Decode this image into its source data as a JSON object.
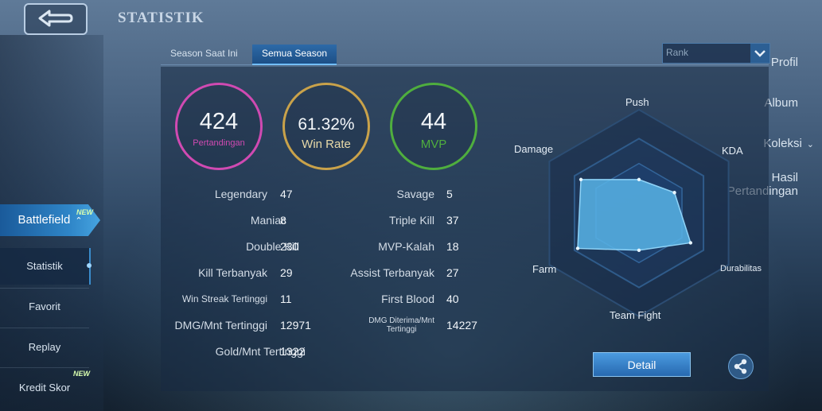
{
  "header": {
    "title": "STATISTIK",
    "back_icon": "back-arrow-icon"
  },
  "sidebar": {
    "items": [
      {
        "label": "Profil"
      },
      {
        "label": "Album"
      },
      {
        "label": "Koleksi"
      },
      {
        "label_line1": "Hasil",
        "label_line2": "Pertandingan"
      },
      {
        "label": "Battlefield",
        "badge": "NEW"
      }
    ],
    "sub_items": [
      {
        "label": "Statistik"
      },
      {
        "label": "Favorit"
      },
      {
        "label": "Replay"
      },
      {
        "label": "Kredit Skor",
        "badge": "NEW"
      }
    ]
  },
  "tabs": [
    {
      "label": "Season Saat Ini"
    },
    {
      "label": "Semua Season"
    }
  ],
  "filter": {
    "selected": "Rank"
  },
  "summary": {
    "matches": {
      "value": "424",
      "label": "Pertandingan",
      "color": "#d04ab2"
    },
    "win_rate": {
      "value": "61.32%",
      "label": "Win Rate",
      "color": "#c9a24a"
    },
    "mvp": {
      "value": "44",
      "label": "MVP",
      "color": "#4fae3e"
    }
  },
  "stats_left": [
    {
      "label": "Legendary",
      "value": "47"
    },
    {
      "label": "Maniac",
      "value": "8"
    },
    {
      "label": "Double Kill",
      "value": "230"
    },
    {
      "label": "Kill Terbanyak",
      "value": "29"
    },
    {
      "label": "Win Streak Tertinggi",
      "value": "11"
    },
    {
      "label": "DMG/Mnt Tertinggi",
      "value": "12971"
    },
    {
      "label": "Gold/Mnt Tertinggi",
      "value": "1322"
    }
  ],
  "stats_right": [
    {
      "label": "Savage",
      "value": "5"
    },
    {
      "label": "Triple Kill",
      "value": "37"
    },
    {
      "label": "MVP-Kalah",
      "value": "18"
    },
    {
      "label": "Assist Terbanyak",
      "value": "27"
    },
    {
      "label": "First Blood",
      "value": "40"
    },
    {
      "label_line1": "DMG Diterima/Mnt",
      "label_line2": "Tertinggi",
      "value": "14227"
    }
  ],
  "radar": {
    "axes": [
      "Push",
      "KDA",
      "Durabilitas",
      "Team Fight",
      "Farm",
      "Damage"
    ],
    "values": [
      0.45,
      0.55,
      0.8,
      0.5,
      0.95,
      0.9
    ]
  },
  "actions": {
    "detail_label": "Detail",
    "share_icon": "share-icon"
  }
}
